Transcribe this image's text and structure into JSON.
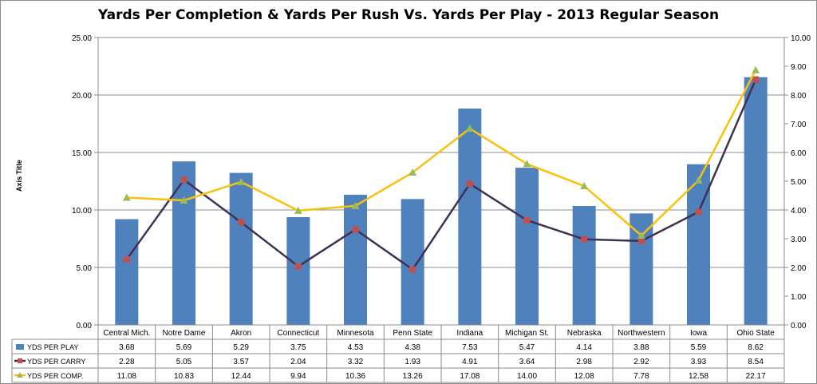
{
  "chart_data": {
    "type": "bar",
    "title": "Yards Per Completion & Yards Per Rush Vs. Yards Per Play - 2013 Regular Season",
    "ylabel": "Axis Title",
    "xlabel": "",
    "categories": [
      "Central Mich.",
      "Notre Dame",
      "Akron",
      "Connecticut",
      "Minnesota",
      "Penn State",
      "Indiana",
      "Michigan St.",
      "Nebraska",
      "Northwestern",
      "Iowa",
      "Ohio State"
    ],
    "y_left": {
      "min": 0,
      "max": 25,
      "step": 5,
      "ticks": [
        "0.00",
        "5.00",
        "10.00",
        "15.00",
        "20.00",
        "25.00"
      ]
    },
    "y_right": {
      "min": 0,
      "max": 10,
      "step": 1,
      "ticks": [
        "0.00",
        "1.00",
        "2.00",
        "3.00",
        "4.00",
        "5.00",
        "6.00",
        "7.00",
        "8.00",
        "9.00",
        "10.00"
      ]
    },
    "grid": "horizontal",
    "legend": "data-table-left",
    "series": [
      {
        "name": "YDS PER PLAY",
        "type": "bar",
        "axis": "right",
        "color": "#4f81bd",
        "values": [
          3.68,
          5.69,
          5.29,
          3.75,
          4.53,
          4.38,
          7.53,
          5.47,
          4.14,
          3.88,
          5.59,
          8.62
        ],
        "labels": [
          "3.68",
          "5.69",
          "5.29",
          "3.75",
          "4.53",
          "4.38",
          "7.53",
          "5.47",
          "4.14",
          "3.88",
          "5.59",
          "8.62"
        ]
      },
      {
        "name": "YDS PER CARRY",
        "type": "line",
        "axis": "right",
        "color": "#403152",
        "marker_color": "#c0504d",
        "marker": "square",
        "values": [
          2.28,
          5.05,
          3.57,
          2.04,
          3.32,
          1.93,
          4.91,
          3.64,
          2.98,
          2.92,
          3.93,
          8.54
        ],
        "labels": [
          "2.28",
          "5.05",
          "3.57",
          "2.04",
          "3.32",
          "1.93",
          "4.91",
          "3.64",
          "2.98",
          "2.92",
          "3.93",
          "8.54"
        ]
      },
      {
        "name": "YDS PER COMP.",
        "type": "line",
        "axis": "left",
        "color": "#f9c10c",
        "marker_color": "#9bbb59",
        "marker": "triangle",
        "values": [
          11.08,
          10.83,
          12.44,
          9.94,
          10.36,
          13.26,
          17.08,
          14.0,
          12.08,
          7.78,
          12.58,
          22.17
        ],
        "labels": [
          "11.08",
          "10.83",
          "12.44",
          "9.94",
          "10.36",
          "13.26",
          "17.08",
          "14.00",
          "12.08",
          "7.78",
          "12.58",
          "22.17"
        ]
      }
    ]
  }
}
